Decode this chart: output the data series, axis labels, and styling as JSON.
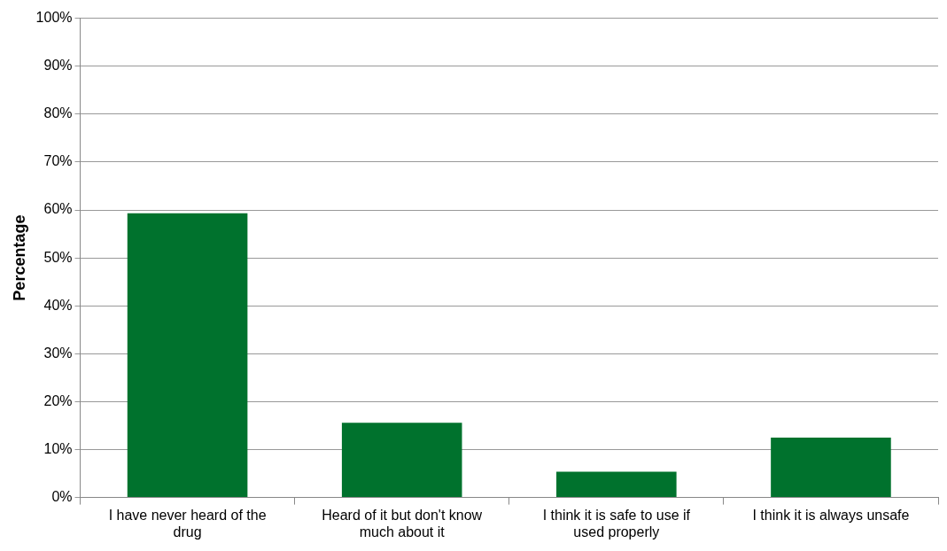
{
  "chart_data": {
    "type": "bar",
    "ylabel": "Percentage",
    "categories": [
      "I have never heard of the drug",
      "Heard of it but don't know much about it",
      "I think it is safe to use if used properly",
      "I think it is always unsafe"
    ],
    "values": [
      59.3,
      15.6,
      5.4,
      12.5
    ],
    "color": "#00722d",
    "ylim": [
      0,
      100
    ],
    "yticks": [
      {
        "value": 0,
        "label": "0%"
      },
      {
        "value": 10,
        "label": "10%"
      },
      {
        "value": 20,
        "label": "20%"
      },
      {
        "value": 30,
        "label": "30%"
      },
      {
        "value": 40,
        "label": "40%"
      },
      {
        "value": 50,
        "label": "50%"
      },
      {
        "value": 60,
        "label": "60%"
      },
      {
        "value": 70,
        "label": "70%"
      },
      {
        "value": 80,
        "label": "80%"
      },
      {
        "value": 90,
        "label": "90%"
      },
      {
        "value": 100,
        "label": "100%"
      }
    ],
    "grid": "y",
    "legend": false
  }
}
